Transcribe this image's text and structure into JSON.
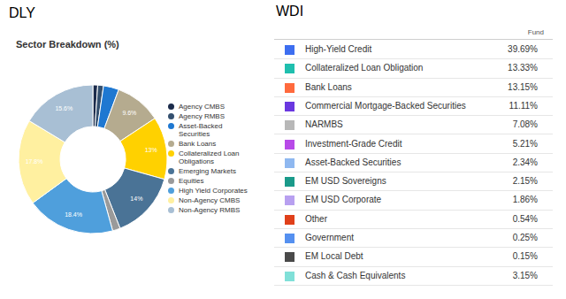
{
  "chart_data": {
    "type": "donut",
    "fund": "DLY",
    "title": "Sector Breakdown (%)",
    "categories": [
      "Agency CMBS",
      "Agency RMBS",
      "Asset-Backed Securities",
      "Bank Loans",
      "Collateralized Loan Obligations",
      "Emerging Markets",
      "Equities",
      "High Yield Corporates",
      "Non-Agency CMBS",
      "Non-Agency RMBS"
    ],
    "values": [
      1.0,
      1.2,
      3.2,
      9.6,
      13,
      14,
      1.6,
      18.4,
      17.8,
      15.6
    ],
    "value_labels": [
      null,
      null,
      null,
      "9.6%",
      "13%",
      "14%",
      null,
      "18.4%",
      "17.8%",
      "15.6%"
    ],
    "colors": [
      "#1b2b4b",
      "#34506f",
      "#1f78d1",
      "#b5ab8f",
      "#ffd100",
      "#4a7396",
      "#9a9a9a",
      "#4f9fdc",
      "#fff0a0",
      "#a8bfd4"
    ],
    "data_labels": true,
    "legend": "right"
  },
  "table": {
    "title": "WDI",
    "header": "Fund",
    "rows": [
      {
        "label": "High-Yield Credit",
        "color": "#3d6ef0",
        "value": "39.69%"
      },
      {
        "label": "Collateralized Loan Obligation",
        "color": "#1fbfae",
        "value": "13.33%"
      },
      {
        "label": "Bank Loans",
        "color": "#ff6a3d",
        "value": "13.15%"
      },
      {
        "label": "Commercial Mortgage-Backed Securities",
        "color": "#6a38e0",
        "value": "11.11%"
      },
      {
        "label": "NARMBS",
        "color": "#b8b8b8",
        "value": "7.08%"
      },
      {
        "label": "Investment-Grade Credit",
        "color": "#b84ae8",
        "value": "5.21%"
      },
      {
        "label": "Asset-Backed Securities",
        "color": "#8fb8f0",
        "value": "2.34%"
      },
      {
        "label": "EM USD Sovereigns",
        "color": "#1a9a8a",
        "value": "2.15%"
      },
      {
        "label": "EM USD Corporate",
        "color": "#b8a0f0",
        "value": "1.86%"
      },
      {
        "label": "Other",
        "color": "#e0401a",
        "value": "0.54%"
      },
      {
        "label": "Government",
        "color": "#5590f0",
        "value": "0.25%"
      },
      {
        "label": "EM Local Debt",
        "color": "#4a4a4a",
        "value": "0.15%"
      },
      {
        "label": "Cash & Cash Equivalents",
        "color": "#80e0d8",
        "value": "3.15%"
      }
    ]
  }
}
